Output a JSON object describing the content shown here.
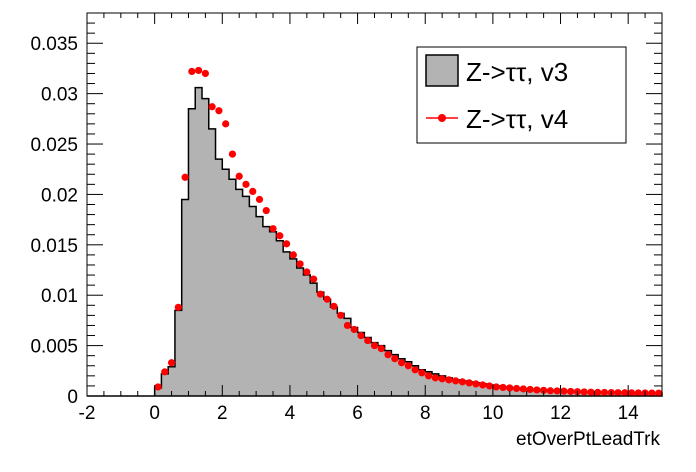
{
  "chart_data": {
    "type": "histogram",
    "title": "",
    "xlabel": "etOverPtLeadTrk",
    "ylabel": "",
    "xlim": [
      -2,
      15
    ],
    "ylim": [
      0,
      0.038
    ],
    "grid": false,
    "legend_position": "top-right",
    "x_ticks": [
      -2,
      0,
      2,
      4,
      6,
      8,
      10,
      12,
      14
    ],
    "x_tick_labels": [
      "-2",
      "0",
      "2",
      "4",
      "6",
      "8",
      "10",
      "12",
      "14"
    ],
    "y_ticks": [
      0,
      0.005,
      0.01,
      0.015,
      0.02,
      0.025,
      0.03,
      0.035
    ],
    "y_tick_labels": [
      "0",
      "0.005",
      "0.01",
      "0.015",
      "0.02",
      "0.025",
      "0.03",
      "0.035"
    ],
    "bin_width": 0.2,
    "x_start": -2,
    "series": [
      {
        "name": "Z->ττ, v3",
        "style": "filled-histogram",
        "fill_color": "#b3b3b3",
        "line_color": "#000000",
        "values": [
          0,
          0,
          0,
          0,
          0,
          0,
          0,
          0,
          0,
          0,
          0.0008,
          0.0022,
          0.0029,
          0.0085,
          0.0195,
          0.0285,
          0.0306,
          0.0295,
          0.0265,
          0.0235,
          0.0225,
          0.0215,
          0.0205,
          0.0198,
          0.0188,
          0.0178,
          0.0168,
          0.0163,
          0.0154,
          0.0143,
          0.0136,
          0.0127,
          0.012,
          0.0112,
          0.0103,
          0.0096,
          0.0088,
          0.0082,
          0.0077,
          0.0068,
          0.0063,
          0.0058,
          0.0053,
          0.005,
          0.0045,
          0.0041,
          0.0037,
          0.0034,
          0.003,
          0.0026,
          0.0024,
          0.0022,
          0.002,
          0.0018,
          0.0016,
          0.0015,
          0.0014,
          0.0013,
          0.0012,
          0.0011,
          0.001,
          0.0009,
          0.0008,
          0.00075,
          0.0007,
          0.00065,
          0.0006,
          0.00055,
          0.0005,
          0.00048,
          0.00045,
          0.00043,
          0.0004,
          0.00038,
          0.00036,
          0.00035,
          0.00034,
          0.00033,
          0.00032,
          0.00031,
          0.0003,
          0.0003,
          0.00029,
          0.00029,
          0.00028
        ]
      },
      {
        "name": "Z->ττ, v4",
        "style": "markers",
        "color": "#ff0000",
        "values": [
          0,
          0,
          0,
          0,
          0,
          0,
          0,
          0,
          0,
          0,
          0.0009,
          0.0024,
          0.0033,
          0.0088,
          0.0217,
          0.0322,
          0.0323,
          0.032,
          0.0287,
          0.0283,
          0.027,
          0.024,
          0.0218,
          0.021,
          0.0203,
          0.0195,
          0.0184,
          0.0166,
          0.0159,
          0.0151,
          0.014,
          0.0131,
          0.0123,
          0.0116,
          0.0101,
          0.0096,
          0.0089,
          0.008,
          0.007,
          0.0066,
          0.006,
          0.0055,
          0.005,
          0.0047,
          0.0041,
          0.0037,
          0.0033,
          0.003,
          0.0026,
          0.0023,
          0.002,
          0.0018,
          0.0017,
          0.0016,
          0.0015,
          0.0014,
          0.0013,
          0.0012,
          0.0011,
          0.001,
          0.0009,
          0.00085,
          0.0008,
          0.00075,
          0.0007,
          0.00065,
          0.0006,
          0.00056,
          0.00052,
          0.0005,
          0.00048,
          0.00045,
          0.00043,
          0.0004,
          0.00038,
          0.00036,
          0.00035,
          0.00034,
          0.00033,
          0.00032,
          0.00031,
          0.0003,
          0.0003,
          0.00029,
          0.00028
        ]
      }
    ]
  },
  "colors": {
    "background": "#ffffff",
    "frame": "#000000",
    "hist_fill": "#b3b3b3",
    "marker": "#ff0000"
  }
}
